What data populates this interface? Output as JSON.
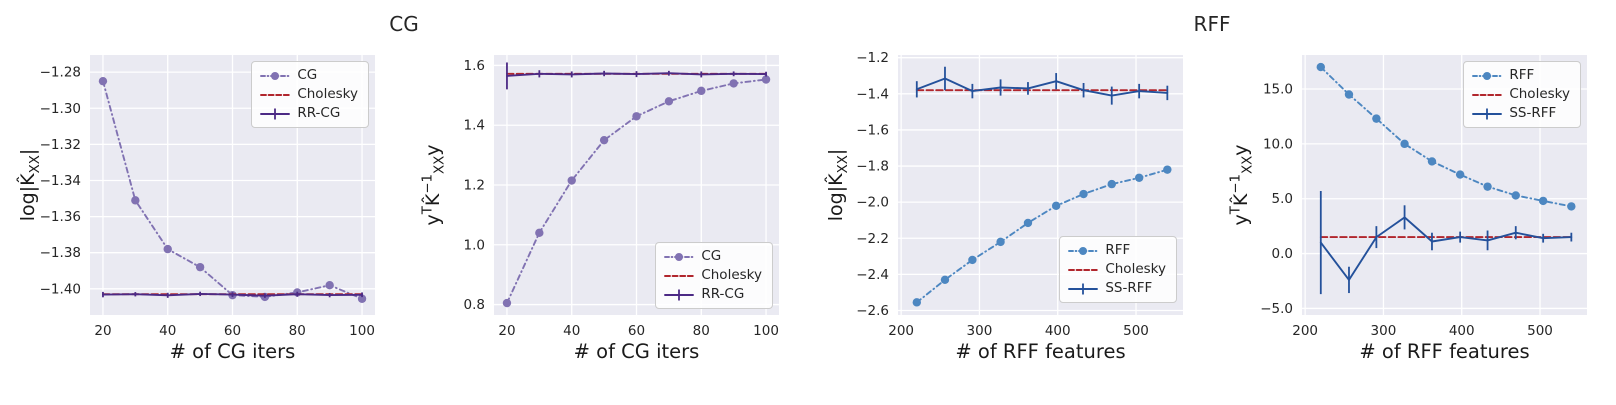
{
  "figure": {
    "groups": [
      {
        "title": "CG"
      },
      {
        "title": "RFF"
      }
    ]
  },
  "style": {
    "plot_bg": "#eaeaf2",
    "grid_color": "#ffffff",
    "text_color": "#262626",
    "cg_color": "#8172b2",
    "rrcg_color": "#4c2a85",
    "cholesky_color": "#b1262d",
    "rff_color": "#4d87c1",
    "ssrff_color": "#24519b"
  },
  "chart_data": [
    {
      "type": "line",
      "group": "CG",
      "xlabel": "# of CG iters",
      "ylabel": "log|K̂_{XX}|",
      "xlim": [
        16,
        104
      ],
      "ylim": [
        -1.4145,
        -1.2705
      ],
      "xticks": [
        20,
        40,
        60,
        80,
        100
      ],
      "yticks": [
        -1.28,
        -1.3,
        -1.32,
        -1.34,
        -1.36,
        -1.38,
        -1.4
      ],
      "xtick_decimals": 0,
      "ytick_decimals": 2,
      "grid": true,
      "legend_position": "top-right",
      "x": [
        20,
        30,
        40,
        50,
        60,
        70,
        80,
        90,
        100
      ],
      "series": [
        {
          "name": "CG",
          "color": "#8172b2",
          "style": "dashdot",
          "marker": "circle",
          "values": [
            -1.285,
            -1.351,
            -1.378,
            -1.388,
            -1.4035,
            -1.4045,
            -1.402,
            -1.398,
            -1.4055
          ]
        },
        {
          "name": "Cholesky",
          "color": "#b1262d",
          "style": "dashed",
          "marker": null,
          "values": [
            -1.403,
            -1.403,
            -1.403,
            -1.403,
            -1.403,
            -1.403,
            -1.403,
            -1.403,
            -1.403
          ]
        },
        {
          "name": "RR-CG",
          "color": "#4c2a85",
          "style": "solid",
          "marker": null,
          "values": [
            -1.4032,
            -1.403,
            -1.4036,
            -1.4028,
            -1.4032,
            -1.4038,
            -1.403,
            -1.4035,
            -1.4033
          ],
          "yerr": [
            0.0015,
            0.0012,
            0.0014,
            0.0012,
            0.0013,
            0.0012,
            0.0014,
            0.0012,
            0.0013
          ]
        }
      ]
    },
    {
      "type": "line",
      "group": "CG",
      "xlabel": "# of CG iters",
      "ylabel": "y^{T}K̂^{-1}_{XX}y",
      "xlim": [
        16,
        104
      ],
      "ylim": [
        0.765,
        1.635
      ],
      "xticks": [
        20,
        40,
        60,
        80,
        100
      ],
      "yticks": [
        0.8,
        1.0,
        1.2,
        1.4,
        1.6
      ],
      "xtick_decimals": 0,
      "ytick_decimals": 1,
      "grid": true,
      "legend_position": "bottom-right",
      "x": [
        20,
        30,
        40,
        50,
        60,
        70,
        80,
        90,
        100
      ],
      "series": [
        {
          "name": "CG",
          "color": "#8172b2",
          "style": "dashdot",
          "marker": "circle",
          "values": [
            0.805,
            1.04,
            1.215,
            1.35,
            1.43,
            1.48,
            1.515,
            1.54,
            1.553
          ]
        },
        {
          "name": "Cholesky",
          "color": "#b1262d",
          "style": "dashed",
          "marker": null,
          "values": [
            1.572,
            1.572,
            1.572,
            1.572,
            1.572,
            1.572,
            1.572,
            1.572,
            1.572
          ]
        },
        {
          "name": "RR-CG",
          "color": "#4c2a85",
          "style": "solid",
          "marker": null,
          "values": [
            1.565,
            1.572,
            1.57,
            1.573,
            1.571,
            1.574,
            1.57,
            1.572,
            1.571
          ],
          "yerr": [
            0.045,
            0.012,
            0.01,
            0.009,
            0.01,
            0.008,
            0.01,
            0.008,
            0.008
          ]
        }
      ]
    },
    {
      "type": "line",
      "group": "RFF",
      "xlabel": "# of RFF features",
      "ylabel": "log|K̂_{XX}|",
      "xlim": [
        196,
        560
      ],
      "ylim": [
        -2.625,
        -1.185
      ],
      "xticks": [
        200,
        300,
        400,
        500
      ],
      "yticks": [
        -1.2,
        -1.4,
        -1.6,
        -1.8,
        -2.0,
        -2.2,
        -2.4,
        -2.6
      ],
      "xtick_decimals": 0,
      "ytick_decimals": 1,
      "grid": true,
      "legend_position": "lower-right",
      "x": [
        220,
        256,
        291,
        327,
        362,
        398,
        433,
        469,
        504,
        540
      ],
      "series": [
        {
          "name": "RFF",
          "color": "#4d87c1",
          "style": "dashdot",
          "marker": "circle",
          "values": [
            -2.555,
            -2.43,
            -2.32,
            -2.22,
            -2.115,
            -2.02,
            -1.955,
            -1.9,
            -1.865,
            -1.82
          ]
        },
        {
          "name": "Cholesky",
          "color": "#b1262d",
          "style": "dashed",
          "marker": null,
          "values": [
            -1.38,
            -1.38,
            -1.38,
            -1.38,
            -1.38,
            -1.38,
            -1.38,
            -1.38,
            -1.38,
            -1.38
          ]
        },
        {
          "name": "SS-RFF",
          "color": "#24519b",
          "style": "solid",
          "marker": null,
          "values": [
            -1.375,
            -1.315,
            -1.385,
            -1.365,
            -1.37,
            -1.33,
            -1.38,
            -1.41,
            -1.385,
            -1.395
          ],
          "yerr": [
            0.045,
            0.065,
            0.04,
            0.045,
            0.035,
            0.045,
            0.04,
            0.05,
            0.04,
            0.04
          ]
        }
      ]
    },
    {
      "type": "line",
      "group": "RFF",
      "xlabel": "# of RFF features",
      "ylabel": "y^{T}K̂^{-1}_{XX}y",
      "xlim": [
        196,
        560
      ],
      "ylim": [
        -5.6,
        18.1
      ],
      "xticks": [
        200,
        300,
        400,
        500
      ],
      "yticks": [
        -5.0,
        0.0,
        5.0,
        10.0,
        15.0
      ],
      "xtick_decimals": 0,
      "ytick_decimals": 1,
      "grid": true,
      "legend_position": "top-right",
      "x": [
        220,
        256,
        291,
        327,
        362,
        398,
        433,
        469,
        504,
        540
      ],
      "series": [
        {
          "name": "RFF",
          "color": "#4d87c1",
          "style": "dashdot",
          "marker": "circle",
          "values": [
            17.0,
            14.5,
            12.3,
            10.0,
            8.4,
            7.2,
            6.1,
            5.3,
            4.8,
            4.3
          ]
        },
        {
          "name": "Cholesky",
          "color": "#b1262d",
          "style": "dashed",
          "marker": null,
          "values": [
            1.5,
            1.5,
            1.5,
            1.5,
            1.5,
            1.5,
            1.5,
            1.5,
            1.5,
            1.5
          ]
        },
        {
          "name": "SS-RFF",
          "color": "#24519b",
          "style": "solid",
          "marker": null,
          "values": [
            1.0,
            -2.4,
            1.5,
            3.3,
            1.1,
            1.5,
            1.2,
            1.9,
            1.4,
            1.5
          ],
          "yerr": [
            4.7,
            1.2,
            1.0,
            1.1,
            0.8,
            0.5,
            0.9,
            0.6,
            0.4,
            0.4
          ]
        }
      ]
    }
  ]
}
